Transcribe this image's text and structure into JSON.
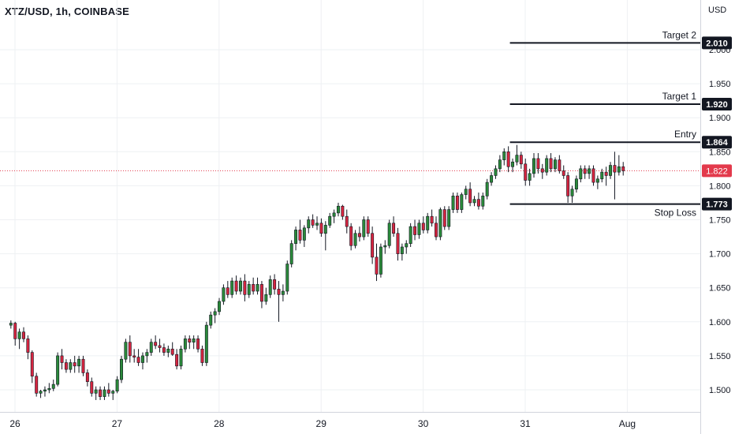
{
  "header": {
    "symbol": "XTZ/USD, 1h, COINBASE",
    "currency": "USD"
  },
  "chart_data": {
    "type": "candlestick",
    "y_ticks": [
      "1.500",
      "1.550",
      "1.600",
      "1.650",
      "1.700",
      "1.750",
      "1.800",
      "1.850",
      "1.900",
      "1.950",
      "2.000"
    ],
    "ylim": [
      1.46,
      2.02
    ],
    "x_ticks": [
      {
        "label": "26",
        "day": 26
      },
      {
        "label": "27",
        "day": 27
      },
      {
        "label": "28",
        "day": 28
      },
      {
        "label": "29",
        "day": 29
      },
      {
        "label": "30",
        "day": 30
      },
      {
        "label": "31",
        "day": 31
      },
      {
        "label": "Aug",
        "day": 32
      }
    ],
    "current_price": {
      "label": "1.822",
      "value": 1.822,
      "color": "#e33a4c"
    },
    "levels": [
      {
        "name": "Target 2",
        "label": "2.010",
        "value": 2.01
      },
      {
        "name": "Target 1",
        "label": "1.920",
        "value": 1.92
      },
      {
        "name": "Entry",
        "label": "1.864",
        "value": 1.864
      },
      {
        "name": "Stop Loss",
        "label": "1.773",
        "value": 1.773
      }
    ],
    "levels_start_day": 30.85,
    "colors": {
      "up": "#2a8a3a",
      "down": "#d62540",
      "wick": "#131722",
      "grid": "#eef0f3",
      "axis": "#131722"
    },
    "candles": {
      "start_day": 25.96,
      "step_hours": 1,
      "ohlc": [
        [
          1.595,
          1.602,
          1.59,
          1.598
        ],
        [
          1.598,
          1.6,
          1.565,
          1.575
        ],
        [
          1.575,
          1.59,
          1.56,
          1.585
        ],
        [
          1.585,
          1.592,
          1.57,
          1.575
        ],
        [
          1.575,
          1.58,
          1.545,
          1.555
        ],
        [
          1.555,
          1.558,
          1.51,
          1.52
        ],
        [
          1.52,
          1.525,
          1.49,
          1.495
        ],
        [
          1.495,
          1.5,
          1.488,
          1.498
        ],
        [
          1.498,
          1.505,
          1.49,
          1.5
        ],
        [
          1.5,
          1.51,
          1.495,
          1.502
        ],
        [
          1.502,
          1.515,
          1.498,
          1.508
        ],
        [
          1.508,
          1.555,
          1.505,
          1.55
        ],
        [
          1.55,
          1.56,
          1.53,
          1.54
        ],
        [
          1.54,
          1.545,
          1.525,
          1.53
        ],
        [
          1.53,
          1.545,
          1.525,
          1.54
        ],
        [
          1.54,
          1.55,
          1.525,
          1.535
        ],
        [
          1.535,
          1.55,
          1.525,
          1.545
        ],
        [
          1.545,
          1.55,
          1.52,
          1.525
        ],
        [
          1.525,
          1.53,
          1.505,
          1.512
        ],
        [
          1.512,
          1.518,
          1.49,
          1.495
        ],
        [
          1.495,
          1.505,
          1.485,
          1.5
        ],
        [
          1.5,
          1.505,
          1.485,
          1.49
        ],
        [
          1.49,
          1.505,
          1.485,
          1.5
        ],
        [
          1.5,
          1.51,
          1.49,
          1.495
        ],
        [
          1.495,
          1.5,
          1.485,
          1.498
        ],
        [
          1.498,
          1.52,
          1.495,
          1.515
        ],
        [
          1.515,
          1.55,
          1.51,
          1.545
        ],
        [
          1.545,
          1.575,
          1.54,
          1.57
        ],
        [
          1.57,
          1.58,
          1.54,
          1.55
        ],
        [
          1.55,
          1.56,
          1.54,
          1.548
        ],
        [
          1.548,
          1.56,
          1.535,
          1.54
        ],
        [
          1.54,
          1.555,
          1.53,
          1.55
        ],
        [
          1.55,
          1.56,
          1.54,
          1.555
        ],
        [
          1.555,
          1.575,
          1.55,
          1.57
        ],
        [
          1.57,
          1.58,
          1.56,
          1.565
        ],
        [
          1.565,
          1.575,
          1.555,
          1.562
        ],
        [
          1.562,
          1.568,
          1.55,
          1.555
        ],
        [
          1.555,
          1.565,
          1.548,
          1.56
        ],
        [
          1.56,
          1.57,
          1.55,
          1.552
        ],
        [
          1.552,
          1.56,
          1.53,
          1.535
        ],
        [
          1.535,
          1.565,
          1.53,
          1.56
        ],
        [
          1.56,
          1.58,
          1.555,
          1.575
        ],
        [
          1.575,
          1.58,
          1.56,
          1.57
        ],
        [
          1.57,
          1.58,
          1.56,
          1.575
        ],
        [
          1.575,
          1.58,
          1.555,
          1.56
        ],
        [
          1.56,
          1.565,
          1.535,
          1.54
        ],
        [
          1.54,
          1.6,
          1.535,
          1.595
        ],
        [
          1.595,
          1.615,
          1.59,
          1.61
        ],
        [
          1.61,
          1.62,
          1.598,
          1.615
        ],
        [
          1.615,
          1.635,
          1.61,
          1.63
        ],
        [
          1.63,
          1.655,
          1.625,
          1.65
        ],
        [
          1.65,
          1.66,
          1.635,
          1.64
        ],
        [
          1.64,
          1.665,
          1.635,
          1.66
        ],
        [
          1.66,
          1.668,
          1.64,
          1.645
        ],
        [
          1.645,
          1.665,
          1.64,
          1.66
        ],
        [
          1.66,
          1.67,
          1.63,
          1.64
        ],
        [
          1.64,
          1.66,
          1.635,
          1.655
        ],
        [
          1.655,
          1.665,
          1.64,
          1.645
        ],
        [
          1.645,
          1.665,
          1.64,
          1.655
        ],
        [
          1.655,
          1.66,
          1.62,
          1.63
        ],
        [
          1.63,
          1.65,
          1.625,
          1.64
        ],
        [
          1.64,
          1.668,
          1.635,
          1.662
        ],
        [
          1.662,
          1.67,
          1.64,
          1.648
        ],
        [
          1.648,
          1.66,
          1.6,
          1.64
        ],
        [
          1.64,
          1.655,
          1.63,
          1.645
        ],
        [
          1.645,
          1.69,
          1.64,
          1.685
        ],
        [
          1.685,
          1.72,
          1.68,
          1.715
        ],
        [
          1.715,
          1.74,
          1.705,
          1.735
        ],
        [
          1.735,
          1.75,
          1.715,
          1.72
        ],
        [
          1.72,
          1.742,
          1.71,
          1.738
        ],
        [
          1.738,
          1.755,
          1.73,
          1.75
        ],
        [
          1.75,
          1.758,
          1.738,
          1.742
        ],
        [
          1.742,
          1.755,
          1.735,
          1.745
        ],
        [
          1.745,
          1.752,
          1.725,
          1.73
        ],
        [
          1.73,
          1.748,
          1.705,
          1.742
        ],
        [
          1.742,
          1.76,
          1.738,
          1.755
        ],
        [
          1.755,
          1.765,
          1.745,
          1.76
        ],
        [
          1.76,
          1.775,
          1.755,
          1.77
        ],
        [
          1.77,
          1.772,
          1.75,
          1.755
        ],
        [
          1.755,
          1.765,
          1.73,
          1.74
        ],
        [
          1.74,
          1.745,
          1.705,
          1.712
        ],
        [
          1.712,
          1.735,
          1.708,
          1.73
        ],
        [
          1.73,
          1.74,
          1.718,
          1.725
        ],
        [
          1.725,
          1.755,
          1.72,
          1.75
        ],
        [
          1.75,
          1.755,
          1.725,
          1.73
        ],
        [
          1.73,
          1.74,
          1.685,
          1.695
        ],
        [
          1.695,
          1.715,
          1.66,
          1.67
        ],
        [
          1.67,
          1.715,
          1.665,
          1.71
        ],
        [
          1.71,
          1.72,
          1.7,
          1.712
        ],
        [
          1.712,
          1.75,
          1.708,
          1.745
        ],
        [
          1.745,
          1.755,
          1.725,
          1.73
        ],
        [
          1.73,
          1.738,
          1.69,
          1.7
        ],
        [
          1.7,
          1.715,
          1.69,
          1.71
        ],
        [
          1.71,
          1.72,
          1.7,
          1.715
        ],
        [
          1.715,
          1.745,
          1.71,
          1.74
        ],
        [
          1.74,
          1.75,
          1.72,
          1.728
        ],
        [
          1.728,
          1.75,
          1.722,
          1.745
        ],
        [
          1.745,
          1.755,
          1.73,
          1.735
        ],
        [
          1.735,
          1.76,
          1.73,
          1.755
        ],
        [
          1.755,
          1.765,
          1.74,
          1.745
        ],
        [
          1.745,
          1.755,
          1.72,
          1.725
        ],
        [
          1.725,
          1.768,
          1.72,
          1.765
        ],
        [
          1.765,
          1.77,
          1.735,
          1.74
        ],
        [
          1.74,
          1.77,
          1.735,
          1.765
        ],
        [
          1.765,
          1.79,
          1.76,
          1.785
        ],
        [
          1.785,
          1.79,
          1.76,
          1.765
        ],
        [
          1.765,
          1.79,
          1.76,
          1.787
        ],
        [
          1.787,
          1.8,
          1.78,
          1.795
        ],
        [
          1.795,
          1.805,
          1.77,
          1.775
        ],
        [
          1.775,
          1.785,
          1.77,
          1.78
        ],
        [
          1.78,
          1.79,
          1.765,
          1.77
        ],
        [
          1.77,
          1.79,
          1.765,
          1.785
        ],
        [
          1.785,
          1.81,
          1.78,
          1.805
        ],
        [
          1.805,
          1.82,
          1.8,
          1.815
        ],
        [
          1.815,
          1.83,
          1.81,
          1.825
        ],
        [
          1.825,
          1.845,
          1.82,
          1.838
        ],
        [
          1.838,
          1.855,
          1.83,
          1.85
        ],
        [
          1.85,
          1.858,
          1.82,
          1.828
        ],
        [
          1.828,
          1.84,
          1.82,
          1.835
        ],
        [
          1.835,
          1.86,
          1.83,
          1.845
        ],
        [
          1.845,
          1.85,
          1.825,
          1.832
        ],
        [
          1.832,
          1.84,
          1.8,
          1.808
        ],
        [
          1.808,
          1.825,
          1.8,
          1.818
        ],
        [
          1.818,
          1.848,
          1.812,
          1.84
        ],
        [
          1.84,
          1.848,
          1.818,
          1.825
        ],
        [
          1.825,
          1.832,
          1.81,
          1.82
        ],
        [
          1.82,
          1.845,
          1.815,
          1.84
        ],
        [
          1.84,
          1.848,
          1.82,
          1.825
        ],
        [
          1.825,
          1.842,
          1.82,
          1.838
        ],
        [
          1.838,
          1.845,
          1.818,
          1.822
        ],
        [
          1.822,
          1.83,
          1.81,
          1.815
        ],
        [
          1.815,
          1.82,
          1.775,
          1.785
        ],
        [
          1.785,
          1.8,
          1.775,
          1.795
        ],
        [
          1.795,
          1.815,
          1.79,
          1.81
        ],
        [
          1.81,
          1.83,
          1.805,
          1.825
        ],
        [
          1.825,
          1.83,
          1.81,
          1.818
        ],
        [
          1.818,
          1.83,
          1.81,
          1.825
        ],
        [
          1.825,
          1.83,
          1.8,
          1.805
        ],
        [
          1.805,
          1.815,
          1.795,
          1.81
        ],
        [
          1.81,
          1.825,
          1.805,
          1.82
        ],
        [
          1.82,
          1.828,
          1.8,
          1.815
        ],
        [
          1.815,
          1.835,
          1.81,
          1.83
        ],
        [
          1.83,
          1.85,
          1.78,
          1.82
        ],
        [
          1.82,
          1.845,
          1.815,
          1.828
        ],
        [
          1.828,
          1.835,
          1.815,
          1.822
        ]
      ]
    }
  }
}
